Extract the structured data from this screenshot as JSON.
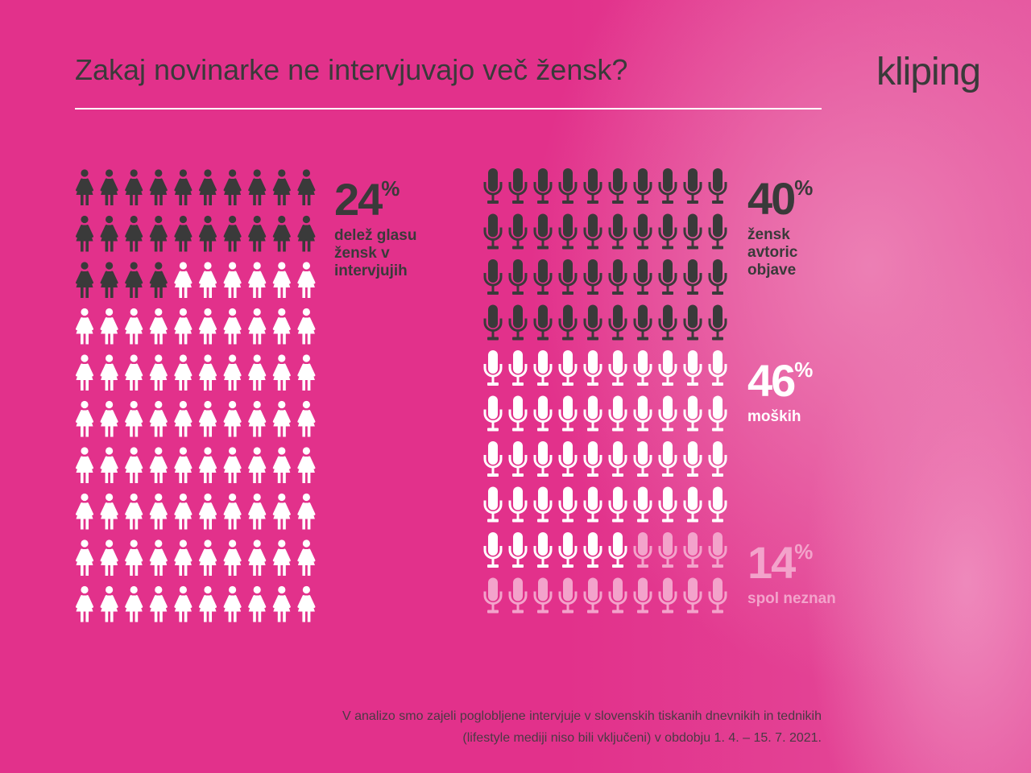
{
  "title": "Zakaj novinarke ne intervjuvajo več žensk?",
  "logo": "kliping",
  "chart_data": [
    {
      "type": "waffle",
      "icon": "woman",
      "rest_color": "#ffffff",
      "series": [
        {
          "name": "delež glasu žensk v intervjujih",
          "color": "#3a3a3a",
          "label_color": "#3a3a3a",
          "value": 24,
          "value_label": "24%"
        }
      ]
    },
    {
      "type": "waffle",
      "icon": "microphone",
      "rest_color": "#ffffff",
      "series": [
        {
          "name": "žensk avtoric objave",
          "color": "#3a3a3a",
          "label_color": "#3a3a3a",
          "value": 40,
          "value_label": "40%"
        },
        {
          "name": "moških",
          "color": "#ffffff",
          "label_color": "#ffffff",
          "value": 46,
          "value_label": "46%"
        },
        {
          "name": "spol neznan",
          "color": "#f3a3cb",
          "label_color": "#f3a3cb",
          "value": 14,
          "value_label": "14%"
        }
      ]
    }
  ],
  "footnote": "V analizo smo zajeli poglobljene intervjuje v slovenskih tiskanih dnevnikih in tednikih (lifestyle mediji niso bili vključeni) v obdobju 1. 4. – 15. 7. 2021."
}
